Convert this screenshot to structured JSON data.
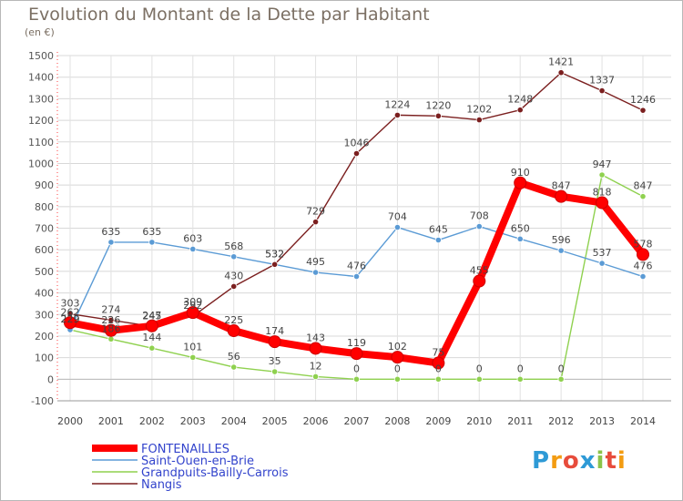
{
  "chart_data": {
    "type": "line",
    "title": "Evolution du Montant de la Dette par Habitant",
    "unit_label": "(en €)",
    "x": [
      "2000",
      "2001",
      "2002",
      "2003",
      "2004",
      "2005",
      "2006",
      "2007",
      "2008",
      "2009",
      "2010",
      "2011",
      "2012",
      "2013",
      "2014"
    ],
    "ylim": [
      -100,
      1500
    ],
    "yticks": [
      "-100",
      "0",
      "100",
      "200",
      "300",
      "400",
      "500",
      "600",
      "700",
      "800",
      "900",
      "1000",
      "1100",
      "1200",
      "1300",
      "1400",
      "1500"
    ],
    "grid": true,
    "legend_position": "bottom-left",
    "series": [
      {
        "name": "FONTENAILLES",
        "color": "#ff0000",
        "values": [
          262,
          226,
          247,
          309,
          225,
          174,
          143,
          119,
          102,
          75,
          455,
          910,
          847,
          818,
          578
        ],
        "labels": [
          "262",
          "226",
          "247",
          "309",
          "225",
          "174",
          "143",
          "119",
          "102",
          "75",
          "455",
          "910",
          "847",
          "818",
          "578"
        ]
      },
      {
        "name": "Saint-Ouen-en-Brie",
        "color": "#5b9bd5",
        "values": [
          229,
          635,
          635,
          603,
          568,
          532,
          495,
          476,
          704,
          645,
          708,
          650,
          596,
          537,
          476
        ],
        "labels": [
          "229",
          "635",
          "635",
          "603",
          "568",
          "532",
          "495",
          "476",
          "704",
          "645",
          "708",
          "650",
          "596",
          "537",
          "476"
        ]
      },
      {
        "name": "Grandpuits-Bailly-Carrois",
        "color": "#8fd14f",
        "values": [
          229,
          186,
          144,
          101,
          56,
          35,
          12,
          0,
          0,
          0,
          0,
          0,
          0,
          947,
          847
        ],
        "labels": [
          "229",
          "186",
          "144",
          "101",
          "56",
          "35",
          "12",
          "0",
          "0",
          "0",
          "0",
          "0",
          "0",
          "947",
          "847"
        ]
      },
      {
        "name": "Nangis",
        "color": "#7b1f1f",
        "values": [
          303,
          274,
          245,
          292,
          430,
          532,
          729,
          1046,
          1224,
          1220,
          1202,
          1248,
          1421,
          1337,
          1246
        ],
        "labels": [
          "303",
          "274",
          "245",
          "292",
          "430",
          "532",
          "729",
          "1046",
          "1224",
          "1220",
          "1202",
          "1248",
          "1421",
          "1337",
          "1246"
        ]
      }
    ]
  },
  "logo": {
    "text": "Proxiti"
  }
}
